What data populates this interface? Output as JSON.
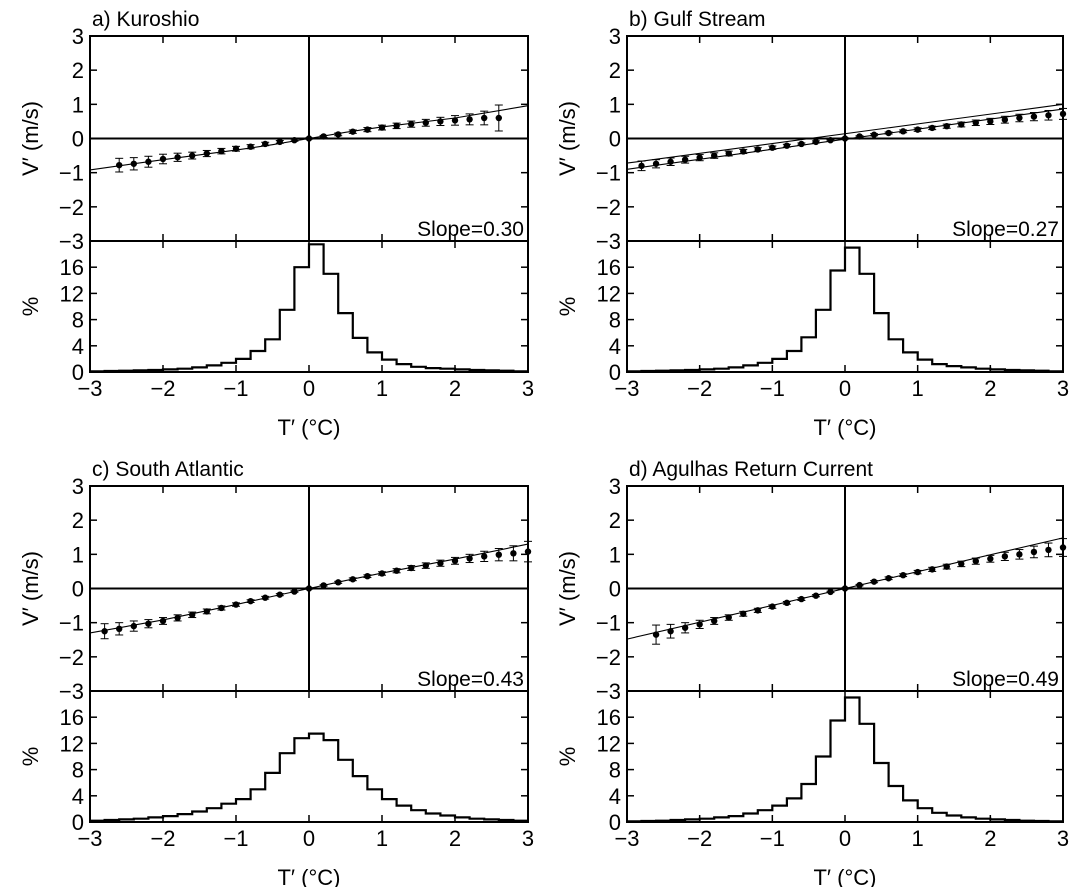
{
  "figure": {
    "panel_titles": [
      "a) Kuroshio",
      "b) Gulf Stream",
      "c) South Atlantic",
      "d) Agulhas Return Current"
    ],
    "top_ylabel": "V′ (m/s)",
    "bottom_ylabel": "%",
    "xlabel": "T′ (°C)"
  },
  "chart_data": [
    {
      "type": "scatter",
      "panel": "a",
      "title": "a) Kuroshio",
      "annotation": "Slope=0.30",
      "x_ticks": [
        "−3",
        "−2",
        "−1",
        "0",
        "1",
        "2",
        "3"
      ],
      "top": {
        "ylabel": "V′ (m/s)",
        "ylim": [
          -3,
          3
        ],
        "y_ticks": [
          "3",
          "2",
          "1",
          "0",
          "−1",
          "−2",
          "−3"
        ],
        "points": {
          "x": [
            -2.6,
            -2.4,
            -2.2,
            -2.0,
            -1.8,
            -1.6,
            -1.4,
            -1.2,
            -1.0,
            -0.8,
            -0.6,
            -0.4,
            -0.2,
            0.0,
            0.2,
            0.4,
            0.6,
            0.8,
            1.0,
            1.2,
            1.4,
            1.6,
            1.8,
            2.0,
            2.2,
            2.4,
            2.6
          ],
          "y": [
            -0.78,
            -0.74,
            -0.68,
            -0.6,
            -0.55,
            -0.5,
            -0.44,
            -0.37,
            -0.3,
            -0.24,
            -0.16,
            -0.1,
            -0.05,
            0.0,
            0.06,
            0.12,
            0.2,
            0.26,
            0.32,
            0.37,
            0.42,
            0.46,
            0.5,
            0.53,
            0.56,
            0.6,
            0.6
          ],
          "err": [
            0.2,
            0.18,
            0.16,
            0.14,
            0.12,
            0.1,
            0.09,
            0.08,
            0.07,
            0.06,
            0.05,
            0.04,
            0.03,
            0.02,
            0.03,
            0.04,
            0.05,
            0.06,
            0.07,
            0.08,
            0.09,
            0.1,
            0.12,
            0.14,
            0.16,
            0.2,
            0.38
          ]
        },
        "fit_lines": [
          {
            "x": [
              -3,
              -2,
              -1,
              -0.5,
              0,
              0.5,
              1,
              2,
              3
            ],
            "y": [
              -0.92,
              -0.62,
              -0.34,
              -0.18,
              0.0,
              0.18,
              0.34,
              0.6,
              0.96
            ]
          }
        ]
      },
      "bottom": {
        "ylabel": "%",
        "ylim": [
          0,
          20
        ],
        "y_ticks": [
          "16",
          "12",
          "8",
          "4",
          "0"
        ],
        "bin_width": 0.2,
        "bin_centers": [
          -2.9,
          -2.7,
          -2.5,
          -2.3,
          -2.1,
          -1.9,
          -1.7,
          -1.5,
          -1.3,
          -1.1,
          -0.9,
          -0.7,
          -0.5,
          -0.3,
          -0.1,
          0.1,
          0.3,
          0.5,
          0.7,
          0.9,
          1.1,
          1.3,
          1.5,
          1.7,
          1.9,
          2.1,
          2.3,
          2.5,
          2.7,
          2.9
        ],
        "values": [
          0.1,
          0.15,
          0.2,
          0.25,
          0.3,
          0.4,
          0.5,
          0.7,
          1.0,
          1.4,
          2.0,
          3.2,
          5.0,
          9.5,
          16.0,
          19.5,
          15.0,
          9.0,
          5.2,
          3.0,
          1.9,
          1.2,
          0.8,
          0.6,
          0.5,
          0.4,
          0.3,
          0.25,
          0.2,
          0.1
        ]
      }
    },
    {
      "type": "scatter",
      "panel": "b",
      "title": "b) Gulf Stream",
      "annotation": "Slope=0.27",
      "x_ticks": [
        "−3",
        "−2",
        "−1",
        "0",
        "1",
        "2",
        "3"
      ],
      "top": {
        "ylabel": "V′ (m/s)",
        "ylim": [
          -3,
          3
        ],
        "y_ticks": [
          "3",
          "2",
          "1",
          "0",
          "−1",
          "−2",
          "−3"
        ],
        "points": {
          "x": [
            -2.8,
            -2.6,
            -2.4,
            -2.2,
            -2.0,
            -1.8,
            -1.6,
            -1.4,
            -1.2,
            -1.0,
            -0.8,
            -0.6,
            -0.4,
            -0.2,
            0.0,
            0.2,
            0.4,
            0.6,
            0.8,
            1.0,
            1.2,
            1.4,
            1.6,
            1.8,
            2.0,
            2.2,
            2.4,
            2.6,
            2.8,
            3.0
          ],
          "y": [
            -0.8,
            -0.74,
            -0.68,
            -0.62,
            -0.56,
            -0.5,
            -0.44,
            -0.38,
            -0.32,
            -0.27,
            -0.21,
            -0.16,
            -0.1,
            -0.05,
            0.0,
            0.06,
            0.11,
            0.16,
            0.21,
            0.26,
            0.31,
            0.36,
            0.41,
            0.46,
            0.5,
            0.55,
            0.6,
            0.64,
            0.68,
            0.72
          ],
          "err": [
            0.14,
            0.12,
            0.11,
            0.1,
            0.09,
            0.08,
            0.07,
            0.06,
            0.05,
            0.05,
            0.04,
            0.03,
            0.03,
            0.02,
            0.02,
            0.02,
            0.03,
            0.03,
            0.04,
            0.05,
            0.05,
            0.06,
            0.07,
            0.08,
            0.09,
            0.1,
            0.11,
            0.12,
            0.14,
            0.16
          ]
        },
        "fit_lines": [
          {
            "x": [
              -3,
              3
            ],
            "y": [
              -0.9,
              0.86
            ]
          },
          {
            "x": [
              -3,
              3
            ],
            "y": [
              -0.72,
              1.0
            ]
          }
        ]
      },
      "bottom": {
        "ylabel": "%",
        "ylim": [
          0,
          20
        ],
        "y_ticks": [
          "16",
          "12",
          "8",
          "4",
          "0"
        ],
        "bin_width": 0.2,
        "bin_centers": [
          -2.9,
          -2.7,
          -2.5,
          -2.3,
          -2.1,
          -1.9,
          -1.7,
          -1.5,
          -1.3,
          -1.1,
          -0.9,
          -0.7,
          -0.5,
          -0.3,
          -0.1,
          0.1,
          0.3,
          0.5,
          0.7,
          0.9,
          1.1,
          1.3,
          1.5,
          1.7,
          1.9,
          2.1,
          2.3,
          2.5,
          2.7,
          2.9
        ],
        "values": [
          0.1,
          0.15,
          0.2,
          0.25,
          0.3,
          0.4,
          0.5,
          0.7,
          1.0,
          1.4,
          2.0,
          3.2,
          5.3,
          9.5,
          15.5,
          19.0,
          15.0,
          9.0,
          5.0,
          3.0,
          1.9,
          1.2,
          0.9,
          0.7,
          0.5,
          0.4,
          0.3,
          0.25,
          0.2,
          0.1
        ]
      }
    },
    {
      "type": "scatter",
      "panel": "c",
      "title": "c) South Atlantic",
      "annotation": "Slope=0.43",
      "x_ticks": [
        "−3",
        "−2",
        "−1",
        "0",
        "1",
        "2",
        "3"
      ],
      "top": {
        "ylabel": "V′ (m/s)",
        "ylim": [
          -3,
          3
        ],
        "y_ticks": [
          "3",
          "2",
          "1",
          "0",
          "−1",
          "−2",
          "−3"
        ],
        "points": {
          "x": [
            -2.8,
            -2.6,
            -2.4,
            -2.2,
            -2.0,
            -1.8,
            -1.6,
            -1.4,
            -1.2,
            -1.0,
            -0.8,
            -0.6,
            -0.4,
            -0.2,
            0.0,
            0.2,
            0.4,
            0.6,
            0.8,
            1.0,
            1.2,
            1.4,
            1.6,
            1.8,
            2.0,
            2.2,
            2.4,
            2.6,
            2.8,
            3.0
          ],
          "y": [
            -1.25,
            -1.18,
            -1.1,
            -1.03,
            -0.95,
            -0.86,
            -0.77,
            -0.67,
            -0.57,
            -0.47,
            -0.37,
            -0.27,
            -0.18,
            -0.09,
            0.0,
            0.09,
            0.18,
            0.27,
            0.36,
            0.44,
            0.52,
            0.6,
            0.67,
            0.74,
            0.81,
            0.88,
            0.94,
            0.99,
            1.03,
            1.08
          ],
          "err": [
            0.22,
            0.18,
            0.15,
            0.12,
            0.1,
            0.09,
            0.08,
            0.07,
            0.06,
            0.05,
            0.04,
            0.04,
            0.03,
            0.02,
            0.02,
            0.02,
            0.03,
            0.04,
            0.04,
            0.05,
            0.06,
            0.07,
            0.08,
            0.09,
            0.1,
            0.12,
            0.15,
            0.18,
            0.22,
            0.3
          ]
        },
        "fit_lines": [
          {
            "x": [
              -3,
              -2,
              -1,
              -0.5,
              0,
              0.5,
              1,
              2,
              3
            ],
            "y": [
              -1.3,
              -0.92,
              -0.47,
              -0.23,
              0.0,
              0.23,
              0.45,
              0.86,
              1.3
            ]
          }
        ]
      },
      "bottom": {
        "ylabel": "%",
        "ylim": [
          0,
          20
        ],
        "y_ticks": [
          "16",
          "12",
          "8",
          "4",
          "0"
        ],
        "bin_width": 0.2,
        "bin_centers": [
          -2.9,
          -2.7,
          -2.5,
          -2.3,
          -2.1,
          -1.9,
          -1.7,
          -1.5,
          -1.3,
          -1.1,
          -0.9,
          -0.7,
          -0.5,
          -0.3,
          -0.1,
          0.1,
          0.3,
          0.5,
          0.7,
          0.9,
          1.1,
          1.3,
          1.5,
          1.7,
          1.9,
          2.1,
          2.3,
          2.5,
          2.7,
          2.9
        ],
        "values": [
          0.2,
          0.3,
          0.4,
          0.5,
          0.7,
          0.9,
          1.2,
          1.6,
          2.1,
          2.8,
          3.5,
          5.0,
          7.5,
          10.5,
          12.8,
          13.5,
          12.5,
          9.5,
          7.0,
          5.0,
          3.5,
          2.5,
          1.8,
          1.3,
          1.0,
          0.7,
          0.5,
          0.4,
          0.3,
          0.2
        ]
      }
    },
    {
      "type": "scatter",
      "panel": "d",
      "title": "d) Agulhas Return Current",
      "annotation": "Slope=0.49",
      "x_ticks": [
        "−3",
        "−2",
        "−1",
        "0",
        "1",
        "2",
        "3"
      ],
      "top": {
        "ylabel": "V′ (m/s)",
        "ylim": [
          -3,
          3
        ],
        "y_ticks": [
          "3",
          "2",
          "1",
          "0",
          "−1",
          "−2",
          "−3"
        ],
        "points": {
          "x": [
            -2.6,
            -2.4,
            -2.2,
            -2.0,
            -1.8,
            -1.6,
            -1.4,
            -1.2,
            -1.0,
            -0.8,
            -0.6,
            -0.4,
            -0.2,
            0.0,
            0.2,
            0.4,
            0.6,
            0.8,
            1.0,
            1.2,
            1.4,
            1.6,
            1.8,
            2.0,
            2.2,
            2.4,
            2.6,
            2.8,
            3.0
          ],
          "y": [
            -1.35,
            -1.25,
            -1.15,
            -1.05,
            -0.95,
            -0.85,
            -0.74,
            -0.64,
            -0.53,
            -0.42,
            -0.31,
            -0.21,
            -0.1,
            0.0,
            0.1,
            0.2,
            0.3,
            0.39,
            0.48,
            0.56,
            0.64,
            0.72,
            0.8,
            0.87,
            0.94,
            1.0,
            1.07,
            1.13,
            1.2
          ],
          "err": [
            0.28,
            0.2,
            0.15,
            0.12,
            0.1,
            0.08,
            0.07,
            0.06,
            0.05,
            0.04,
            0.04,
            0.03,
            0.02,
            0.02,
            0.02,
            0.03,
            0.04,
            0.04,
            0.05,
            0.06,
            0.07,
            0.08,
            0.09,
            0.1,
            0.12,
            0.14,
            0.17,
            0.2,
            0.26
          ]
        },
        "fit_lines": [
          {
            "x": [
              -3,
              3
            ],
            "y": [
              -1.48,
              1.48
            ]
          }
        ]
      },
      "bottom": {
        "ylabel": "%",
        "ylim": [
          0,
          20
        ],
        "y_ticks": [
          "16",
          "12",
          "8",
          "4",
          "0"
        ],
        "bin_width": 0.2,
        "bin_centers": [
          -2.9,
          -2.7,
          -2.5,
          -2.3,
          -2.1,
          -1.9,
          -1.7,
          -1.5,
          -1.3,
          -1.1,
          -0.9,
          -0.7,
          -0.5,
          -0.3,
          -0.1,
          0.1,
          0.3,
          0.5,
          0.7,
          0.9,
          1.1,
          1.3,
          1.5,
          1.7,
          1.9,
          2.1,
          2.3,
          2.5,
          2.7,
          2.9
        ],
        "values": [
          0.1,
          0.15,
          0.2,
          0.3,
          0.4,
          0.5,
          0.7,
          0.9,
          1.3,
          1.8,
          2.5,
          3.6,
          5.8,
          10.0,
          15.5,
          19.0,
          15.0,
          9.0,
          5.5,
          3.3,
          2.1,
          1.4,
          1.0,
          0.7,
          0.5,
          0.4,
          0.3,
          0.2,
          0.15,
          0.1
        ]
      }
    }
  ]
}
